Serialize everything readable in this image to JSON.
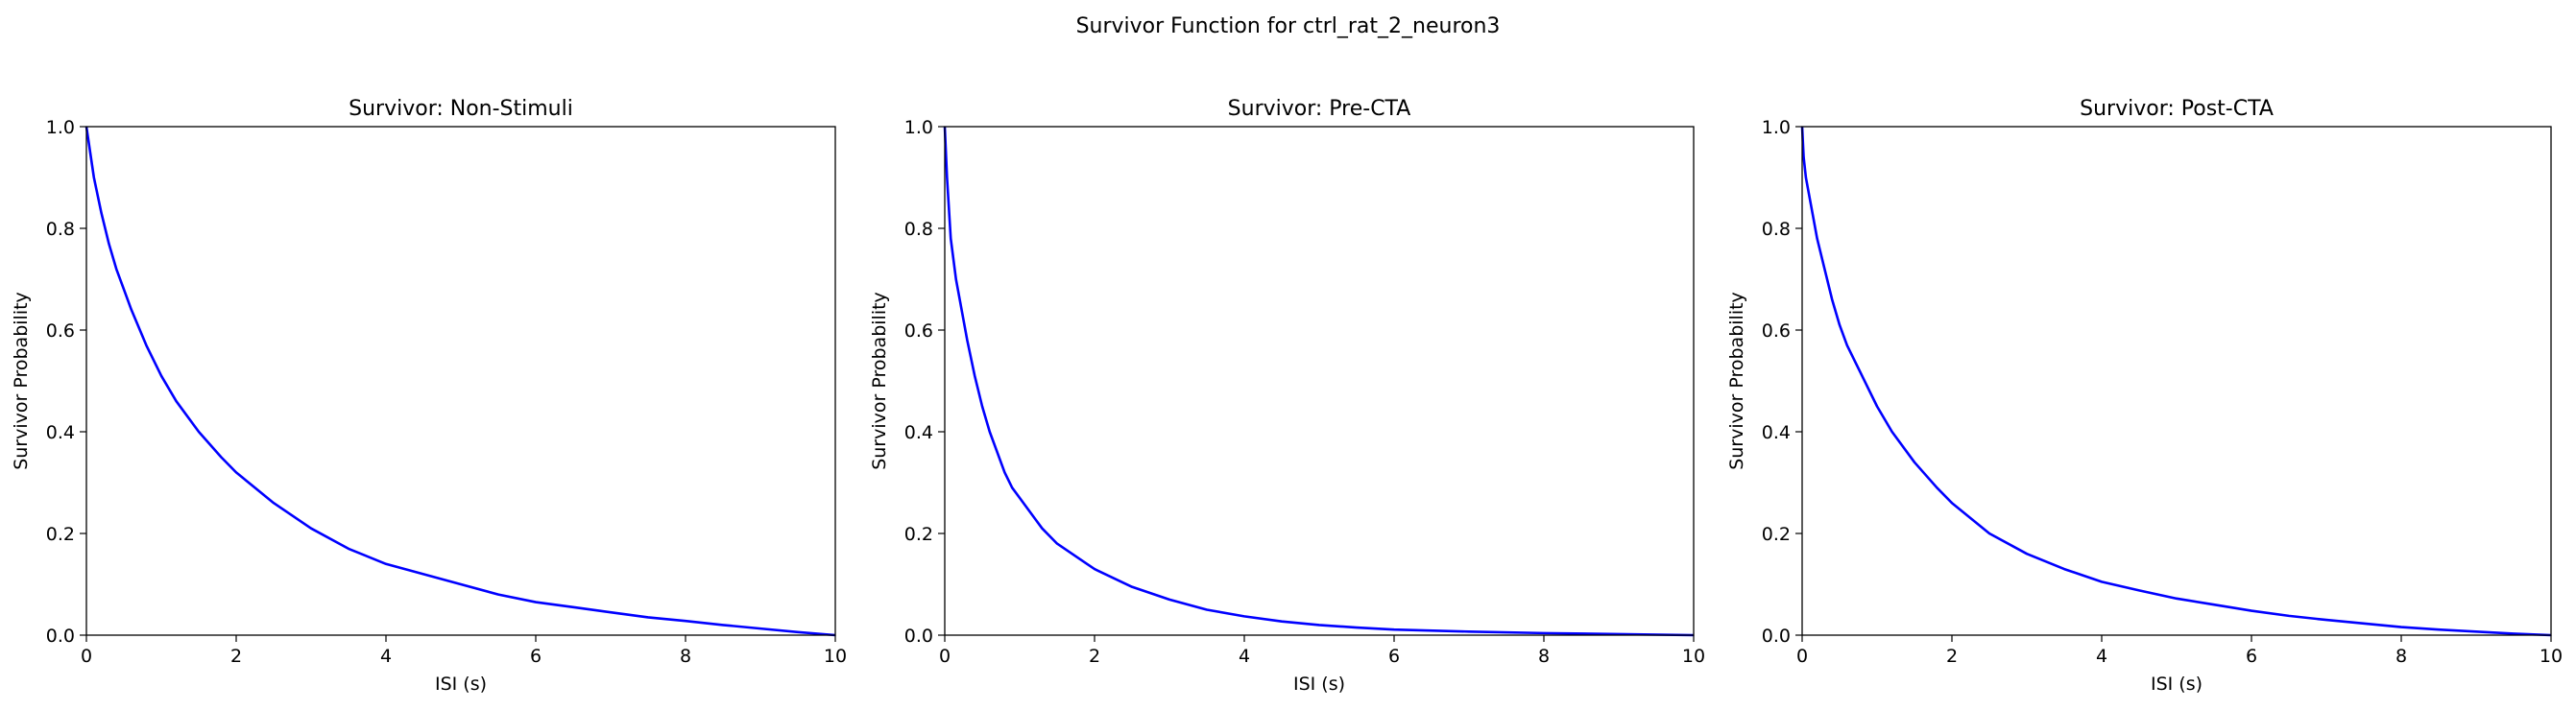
{
  "figure": {
    "suptitle": "Survivor Function for ctrl_rat_2_neuron3",
    "line_color": "#0000ff"
  },
  "chart_data": [
    {
      "type": "line",
      "title": "Survivor: Non-Stimuli",
      "xlabel": "ISI (s)",
      "ylabel": "Survivor Probability",
      "xlim": [
        0,
        10
      ],
      "ylim": [
        0,
        1
      ],
      "xticks": [
        "0",
        "2",
        "4",
        "6",
        "8",
        "10"
      ],
      "yticks": [
        "0.0",
        "0.2",
        "0.4",
        "0.6",
        "0.8",
        "1.0"
      ],
      "grid": false,
      "series": [
        {
          "x": [
            0,
            0.05,
            0.1,
            0.2,
            0.3,
            0.4,
            0.5,
            0.6,
            0.8,
            1.0,
            1.2,
            1.5,
            1.8,
            2.0,
            2.5,
            3.0,
            3.5,
            4.0,
            4.5,
            5.0,
            5.5,
            6.0,
            6.5,
            7.0,
            7.5,
            8.0,
            8.5,
            9.0,
            9.5,
            10.0
          ],
          "y": [
            1.0,
            0.95,
            0.9,
            0.83,
            0.77,
            0.72,
            0.68,
            0.64,
            0.57,
            0.51,
            0.46,
            0.4,
            0.35,
            0.32,
            0.26,
            0.21,
            0.17,
            0.14,
            0.12,
            0.1,
            0.08,
            0.065,
            0.055,
            0.045,
            0.035,
            0.028,
            0.02,
            0.013,
            0.006,
            0.0
          ]
        }
      ]
    },
    {
      "type": "line",
      "title": "Survivor: Pre-CTA",
      "xlabel": "ISI (s)",
      "ylabel": "Survivor Probability",
      "xlim": [
        0,
        10
      ],
      "ylim": [
        0,
        1
      ],
      "xticks": [
        "0",
        "2",
        "4",
        "6",
        "8",
        "10"
      ],
      "yticks": [
        "0.0",
        "0.2",
        "0.4",
        "0.6",
        "0.8",
        "1.0"
      ],
      "grid": false,
      "series": [
        {
          "x": [
            0,
            0.03,
            0.08,
            0.15,
            0.2,
            0.3,
            0.4,
            0.5,
            0.6,
            0.7,
            0.8,
            0.9,
            1.0,
            1.1,
            1.2,
            1.3,
            1.5,
            1.7,
            1.9,
            2.0,
            2.5,
            3.0,
            3.5,
            4.0,
            4.5,
            5.0,
            5.5,
            6.0,
            7.0,
            8.0,
            9.0,
            10.0
          ],
          "y": [
            1.0,
            0.9,
            0.78,
            0.7,
            0.66,
            0.58,
            0.51,
            0.45,
            0.4,
            0.36,
            0.32,
            0.29,
            0.27,
            0.25,
            0.23,
            0.21,
            0.18,
            0.16,
            0.14,
            0.13,
            0.095,
            0.07,
            0.05,
            0.037,
            0.027,
            0.02,
            0.015,
            0.011,
            0.007,
            0.004,
            0.002,
            0.0
          ]
        }
      ]
    },
    {
      "type": "line",
      "title": "Survivor: Post-CTA",
      "xlabel": "ISI (s)",
      "ylabel": "Survivor Probability",
      "xlim": [
        0,
        10
      ],
      "ylim": [
        0,
        1
      ],
      "xticks": [
        "0",
        "2",
        "4",
        "6",
        "8",
        "10"
      ],
      "yticks": [
        "0.0",
        "0.2",
        "0.4",
        "0.6",
        "0.8",
        "1.0"
      ],
      "grid": false,
      "series": [
        {
          "x": [
            0,
            0.02,
            0.05,
            0.1,
            0.15,
            0.2,
            0.3,
            0.4,
            0.5,
            0.6,
            0.8,
            1.0,
            1.2,
            1.5,
            1.8,
            2.0,
            2.5,
            3.0,
            3.5,
            4.0,
            4.5,
            5.0,
            5.5,
            6.0,
            6.5,
            7.0,
            7.5,
            8.0,
            8.5,
            9.0,
            9.5,
            10.0
          ],
          "y": [
            1.0,
            0.94,
            0.9,
            0.86,
            0.82,
            0.78,
            0.72,
            0.66,
            0.61,
            0.57,
            0.51,
            0.45,
            0.4,
            0.34,
            0.29,
            0.26,
            0.2,
            0.16,
            0.13,
            0.105,
            0.088,
            0.072,
            0.06,
            0.048,
            0.038,
            0.03,
            0.023,
            0.016,
            0.011,
            0.007,
            0.003,
            0.0
          ]
        }
      ]
    }
  ]
}
